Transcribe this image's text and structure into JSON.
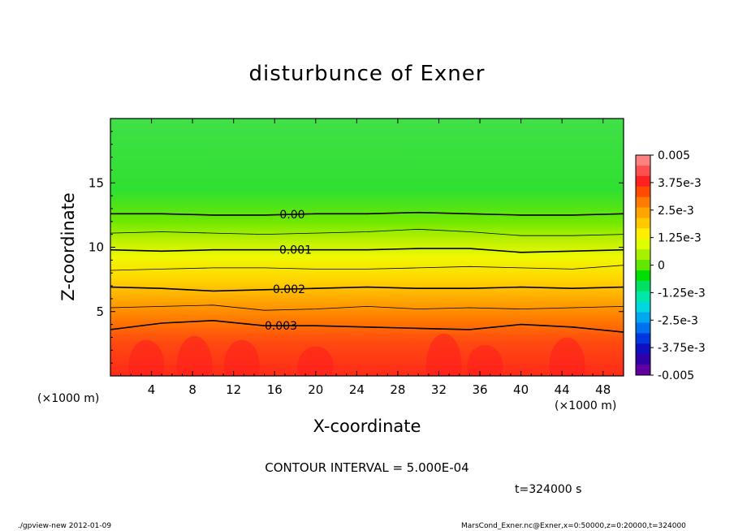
{
  "chart_data": {
    "type": "heatmap",
    "title": "disturbunce of Exner",
    "xlabel": "X-coordinate",
    "ylabel": "Z-coordinate",
    "x_unit": "(×1000 m)",
    "y_unit": "(×1000 m)",
    "xlim": [
      0,
      50
    ],
    "ylim": [
      0,
      20
    ],
    "x_ticks": [
      4,
      8,
      12,
      16,
      20,
      24,
      28,
      32,
      36,
      40,
      44,
      48
    ],
    "y_ticks": [
      5,
      10,
      15
    ],
    "colorbar": {
      "range": [
        -0.005,
        0.005
      ],
      "labels": [
        "0.005",
        "3.75e-3",
        "2.5e-3",
        "1.25e-3",
        "0",
        "-1.25e-3",
        "-2.5e-3",
        "-3.75e-3",
        "-0.005"
      ],
      "colors": [
        "#ff8080",
        "#ff5050",
        "#ff2020",
        "#ff4a00",
        "#ff7a00",
        "#ffa400",
        "#ffc800",
        "#ffee00",
        "#ddff00",
        "#a8f000",
        "#62e800",
        "#00e000",
        "#00e060",
        "#00e8a8",
        "#00d8e0",
        "#00a8f0",
        "#0070f0",
        "#0038e0",
        "#1010c0",
        "#3000a8",
        "#6000a0"
      ],
      "position": "right"
    },
    "contour_labels": [
      "0.00",
      "0.001",
      "0.002",
      "0.003"
    ],
    "contour_levels": [
      {
        "value": 0.0,
        "z": [
          12.6,
          12.6,
          12.5,
          12.5,
          12.6,
          12.6,
          12.7,
          12.6,
          12.5,
          12.5,
          12.6
        ],
        "labeled": true
      },
      {
        "value": 0.0005,
        "z": [
          11.1,
          11.2,
          11.1,
          11.0,
          11.1,
          11.2,
          11.4,
          11.2,
          10.9,
          10.9,
          11.0
        ],
        "labeled": false
      },
      {
        "value": 0.001,
        "z": [
          9.8,
          9.7,
          9.8,
          9.8,
          9.8,
          9.8,
          9.9,
          9.9,
          9.6,
          9.7,
          9.8
        ],
        "labeled": true
      },
      {
        "value": 0.0015,
        "z": [
          8.2,
          8.3,
          8.4,
          8.4,
          8.3,
          8.3,
          8.4,
          8.5,
          8.4,
          8.3,
          8.6
        ],
        "labeled": false
      },
      {
        "value": 0.002,
        "z": [
          6.9,
          6.8,
          6.6,
          6.7,
          6.8,
          6.9,
          6.8,
          6.8,
          6.9,
          6.8,
          6.9
        ],
        "labeled": true
      },
      {
        "value": 0.0025,
        "z": [
          5.3,
          5.4,
          5.5,
          5.1,
          5.2,
          5.4,
          5.2,
          5.3,
          5.2,
          5.3,
          5.4
        ],
        "labeled": false
      },
      {
        "value": 0.003,
        "z": [
          3.6,
          4.1,
          4.3,
          3.9,
          3.9,
          3.8,
          3.7,
          3.6,
          4.0,
          3.8,
          3.4
        ],
        "labeled": true
      }
    ],
    "grid": false
  },
  "annotations": {
    "contour_interval": "CONTOUR INTERVAL = 5.000E-04",
    "time": "t=324000 s"
  },
  "footer": {
    "left": "./gpview-new   2012-01-09",
    "right": "MarsCond_Exner.nc@Exner,x=0:50000,z=0:20000,t=324000"
  }
}
